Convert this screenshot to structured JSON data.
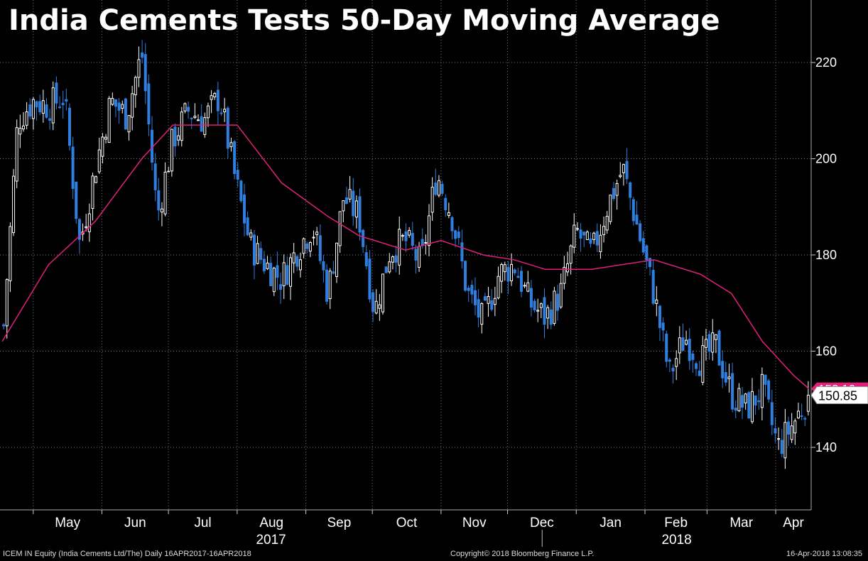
{
  "title": "India Cements Tests 50-Day Moving Average",
  "footer": {
    "left": "ICEM IN Equity (India Cements Ltd/The)  Daily 16APR2017-16APR2018",
    "center": "Copyright© 2018 Bloomberg Finance L.P.",
    "right": "16-Apr-2018 13:08:35"
  },
  "colors": {
    "background": "#000000",
    "up_candle": "#ffffff",
    "down_candle": "#2f7fe0",
    "moving_average": "#e0207a",
    "grid": "#777777",
    "axis_text": "#ffffff"
  },
  "chart_data": {
    "type": "candlestick",
    "title": "India Cements Tests 50-Day Moving Average",
    "y_axis": {
      "side": "right",
      "range": [
        127,
        233
      ],
      "ticks": [
        140,
        160,
        180,
        200,
        220
      ]
    },
    "x_axis": {
      "months": [
        "May",
        "Jun",
        "Jul",
        "Aug",
        "Sep",
        "Oct",
        "Nov",
        "Dec",
        "Jan",
        "Feb",
        "Mar",
        "Apr"
      ],
      "years": [
        "2017",
        "2018"
      ]
    },
    "grid": true,
    "last_price": {
      "label": "150.85",
      "value": 150.85
    },
    "ma_label": {
      "label": "152.16",
      "value": 152.16
    },
    "series": [
      {
        "kind": "price_close",
        "x": [
          "2017-04-17",
          "2017-04-24",
          "2017-05-01",
          "2017-05-08",
          "2017-05-15",
          "2017-05-22",
          "2017-05-29",
          "2017-06-05",
          "2017-06-12",
          "2017-06-19",
          "2017-06-26",
          "2017-07-03",
          "2017-07-10",
          "2017-07-17",
          "2017-07-24",
          "2017-07-31",
          "2017-08-07",
          "2017-08-14",
          "2017-08-21",
          "2017-08-28",
          "2017-09-04",
          "2017-09-11",
          "2017-09-18",
          "2017-09-25",
          "2017-10-02",
          "2017-10-09",
          "2017-10-16",
          "2017-10-23",
          "2017-10-30",
          "2017-11-06",
          "2017-11-13",
          "2017-11-20",
          "2017-11-27",
          "2017-12-04",
          "2017-12-11",
          "2017-12-18",
          "2017-12-25",
          "2018-01-01",
          "2018-01-08",
          "2018-01-15",
          "2018-01-22",
          "2018-01-29",
          "2018-02-05",
          "2018-02-12",
          "2018-02-19",
          "2018-02-26",
          "2018-03-05",
          "2018-03-12",
          "2018-03-19",
          "2018-03-26",
          "2018-04-02",
          "2018-04-09",
          "2018-04-16"
        ],
        "y": [
          161,
          208,
          212,
          211,
          213,
          182,
          198,
          212,
          209,
          222,
          188,
          204,
          210,
          208,
          213,
          196,
          182,
          178,
          175,
          181,
          186,
          172,
          192,
          188,
          168,
          181,
          183,
          178,
          197,
          188,
          172,
          166,
          176,
          178,
          170,
          167,
          172,
          185,
          180,
          190,
          198,
          185,
          172,
          155,
          163,
          158,
          161,
          151,
          148,
          152,
          140,
          145,
          150.85
        ]
      },
      {
        "name": "50-Day Moving Average",
        "kind": "moving_average",
        "x": [
          "2017-04-17",
          "2017-05-08",
          "2017-05-29",
          "2017-06-19",
          "2017-07-03",
          "2017-07-17",
          "2017-08-01",
          "2017-08-21",
          "2017-09-11",
          "2017-09-25",
          "2017-10-16",
          "2017-11-01",
          "2017-11-20",
          "2017-12-04",
          "2017-12-18",
          "2018-01-08",
          "2018-01-22",
          "2018-02-05",
          "2018-02-26",
          "2018-03-12",
          "2018-03-26",
          "2018-04-09",
          "2018-04-16"
        ],
        "y": [
          162,
          178,
          187,
          200,
          207,
          207,
          207,
          195,
          188,
          184,
          181,
          183,
          180,
          179,
          177,
          177,
          178,
          179,
          176,
          172,
          162,
          155,
          152.16
        ]
      }
    ]
  }
}
